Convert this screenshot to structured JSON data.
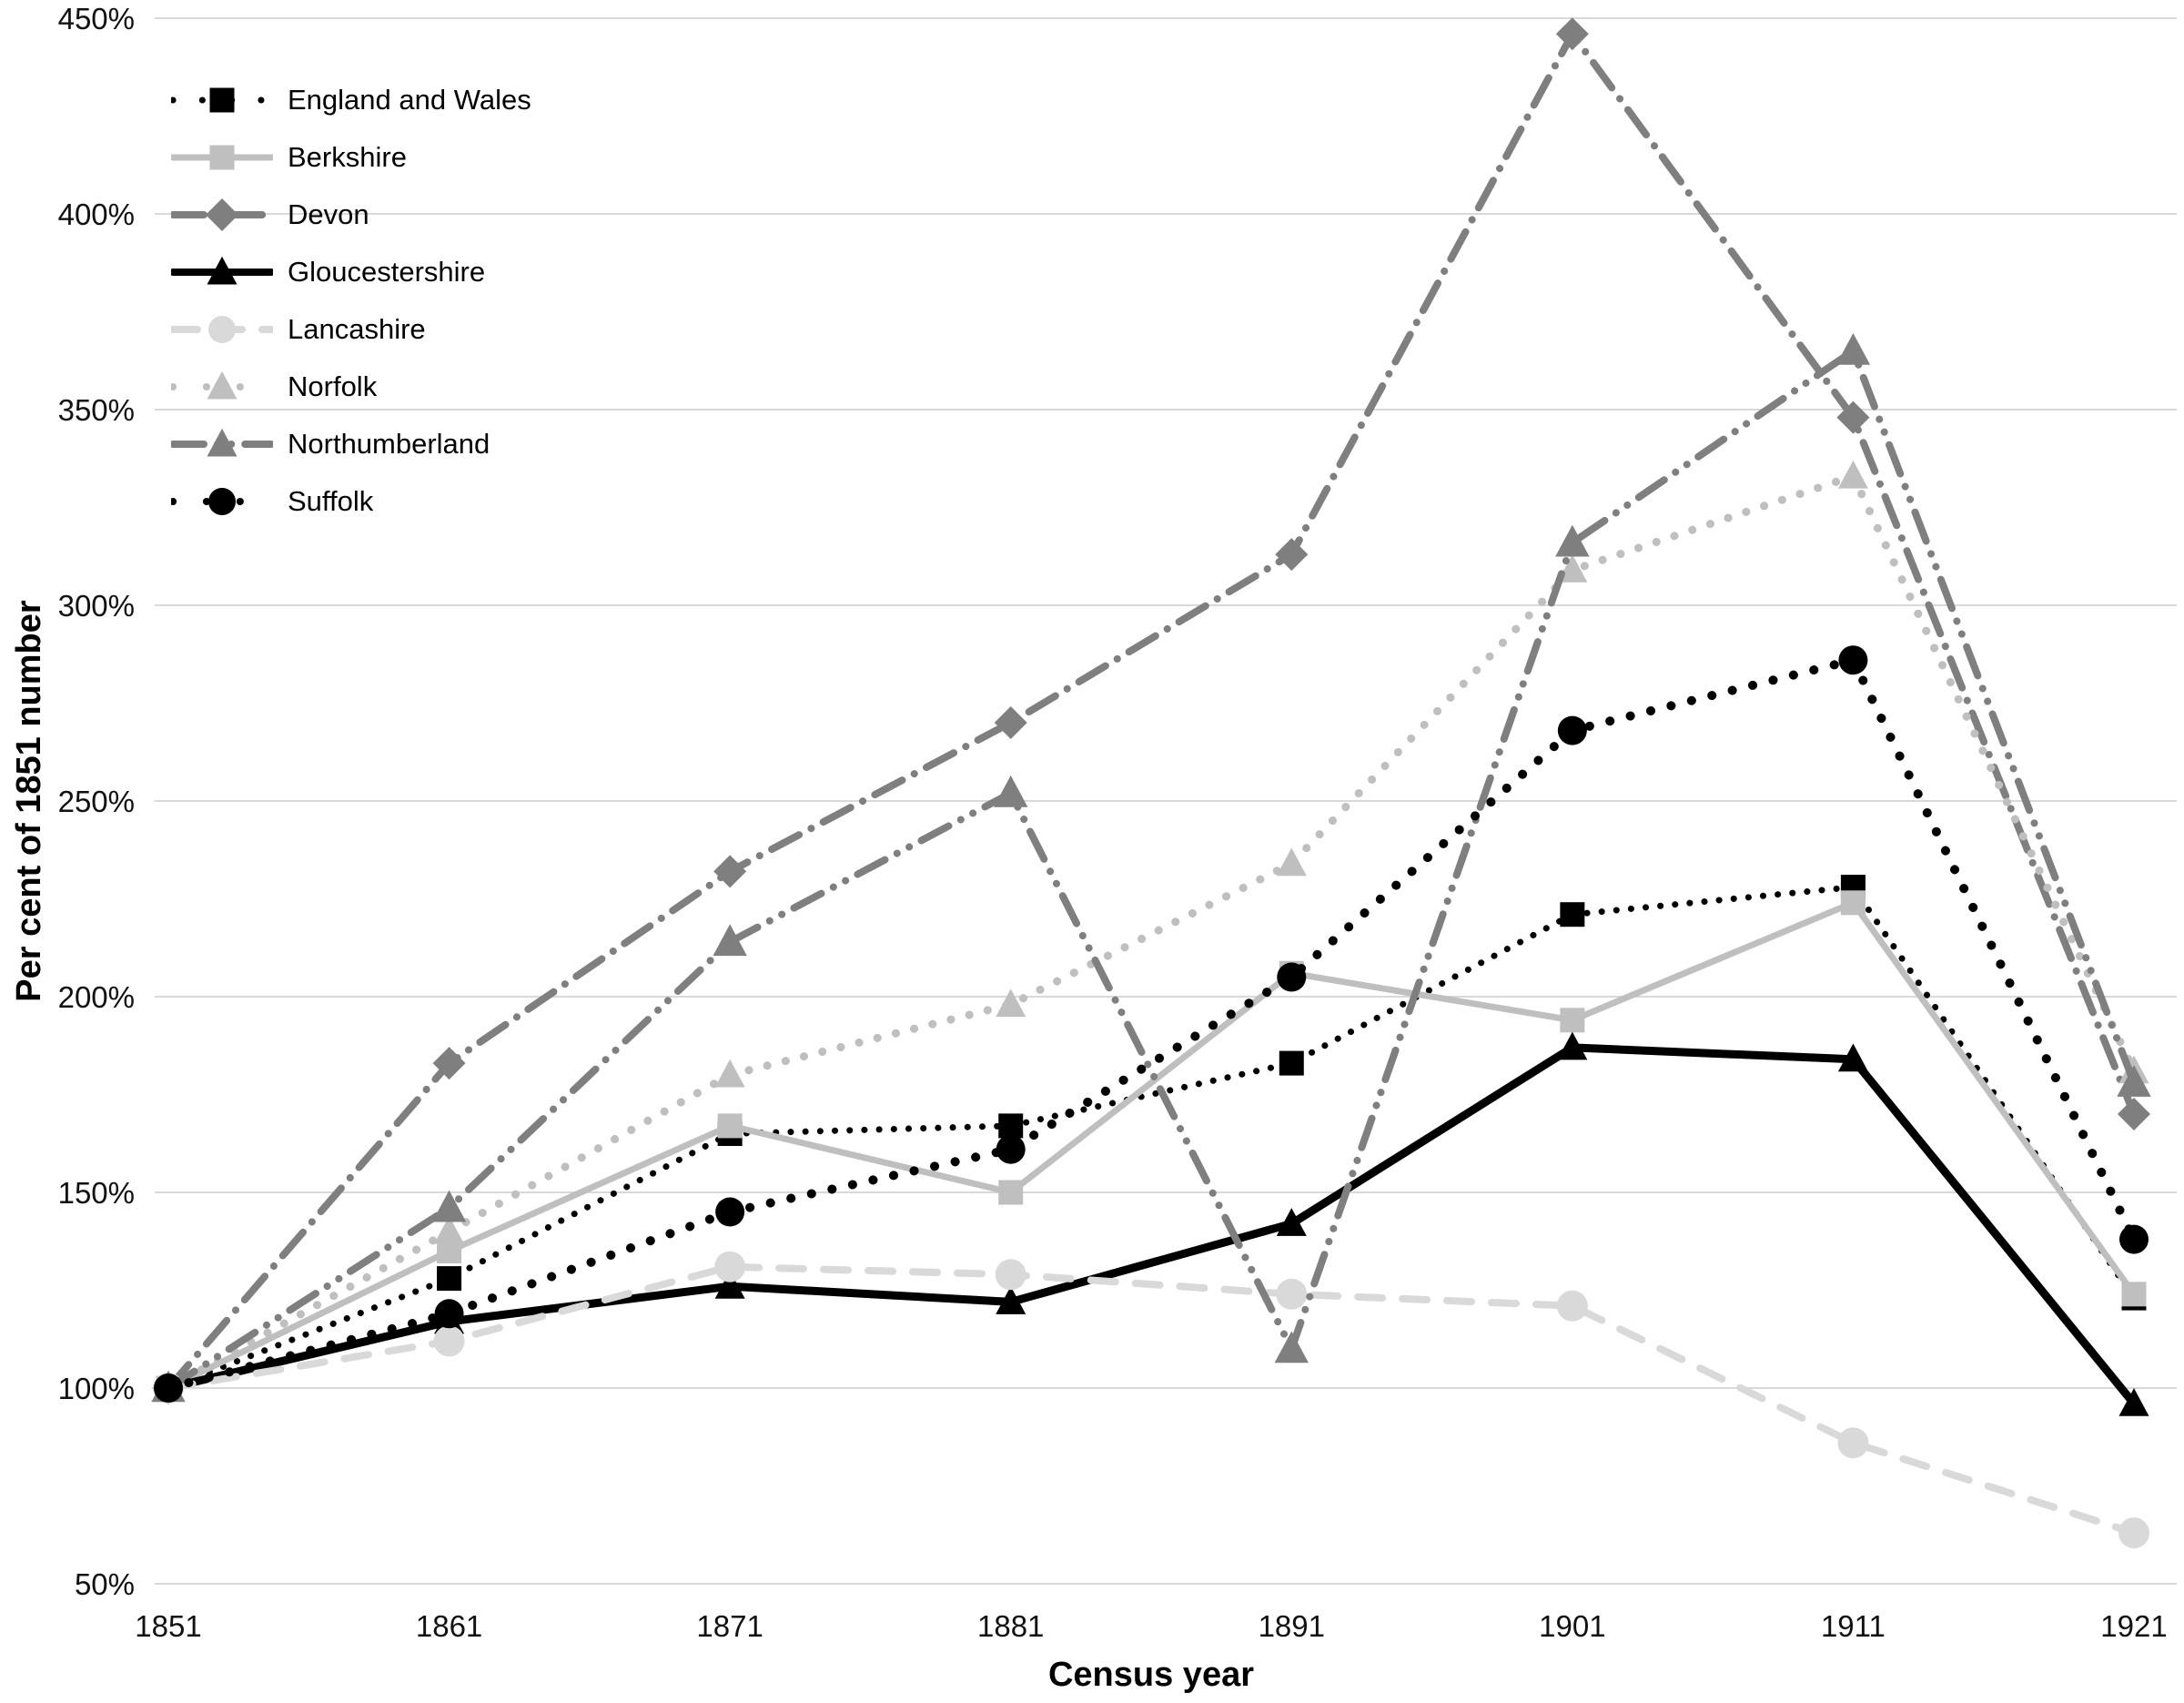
{
  "chart_data": {
    "type": "line",
    "title": "",
    "xlabel": "Census year",
    "ylabel": "Per cent of 1851 number",
    "x": [
      1851,
      1861,
      1871,
      1881,
      1891,
      1901,
      1911,
      1921
    ],
    "x_tick_labels": [
      "1851",
      "1861",
      "1871",
      "1881",
      "1891",
      "1901",
      "1911",
      "1921"
    ],
    "y_tick_labels": [
      "450%",
      "400%",
      "350%",
      "300%",
      "250%",
      "200%",
      "150%",
      "100%",
      "50%"
    ],
    "ylim": [
      50,
      450
    ],
    "ytick_step": 50,
    "grid": "horizontal",
    "gridline_color": "#d9d9d9",
    "legend_position": "top-left",
    "series": [
      {
        "name": "England and Wales",
        "color": "#000000",
        "line_style": "dotted",
        "line_width": 7,
        "marker": "square",
        "marker_size": 13.5,
        "values": [
          100,
          128,
          165,
          167,
          183,
          221,
          228,
          123
        ]
      },
      {
        "name": "Berkshire",
        "color": "#bfbfbf",
        "line_style": "solid",
        "line_width": 7,
        "marker": "square",
        "marker_size": 13.5,
        "values": [
          100,
          135,
          167,
          150,
          206,
          194,
          224,
          124
        ]
      },
      {
        "name": "Devon",
        "color": "#7f7f7f",
        "line_style": "dashdot",
        "line_width": 8,
        "marker": "diamond",
        "marker_size": 15,
        "values": [
          100,
          183,
          232,
          270,
          313,
          446,
          348,
          170
        ]
      },
      {
        "name": "Gloucestershire",
        "color": "#000000",
        "line_style": "solid",
        "line_width": 9,
        "marker": "triangle",
        "marker_size": 15,
        "values": [
          100,
          117,
          126,
          122,
          142,
          187,
          184,
          96
        ]
      },
      {
        "name": "Lancashire",
        "color": "#d9d9d9",
        "line_style": "dashed",
        "line_width": 8,
        "marker": "circle",
        "marker_size": 17,
        "values": [
          100,
          112,
          131,
          129,
          124,
          121,
          86,
          63
        ]
      },
      {
        "name": "Norfolk",
        "color": "#bfbfbf",
        "line_style": "dotted",
        "line_width": 9,
        "marker": "triangle",
        "marker_size": 15,
        "values": [
          100,
          140,
          180,
          198,
          234,
          309,
          333,
          181
        ]
      },
      {
        "name": "Northumberland",
        "color": "#7f7f7f",
        "line_style": "dashdotdot",
        "line_width": 8,
        "marker": "triangle",
        "marker_size": 17,
        "values": [
          100,
          146,
          214,
          252,
          110,
          316,
          365,
          178
        ]
      },
      {
        "name": "Suffolk",
        "color": "#000000",
        "line_style": "dotted",
        "line_width": 10,
        "marker": "circle",
        "marker_size": 16,
        "values": [
          100,
          119,
          145,
          161,
          205,
          268,
          286,
          138
        ]
      }
    ]
  }
}
